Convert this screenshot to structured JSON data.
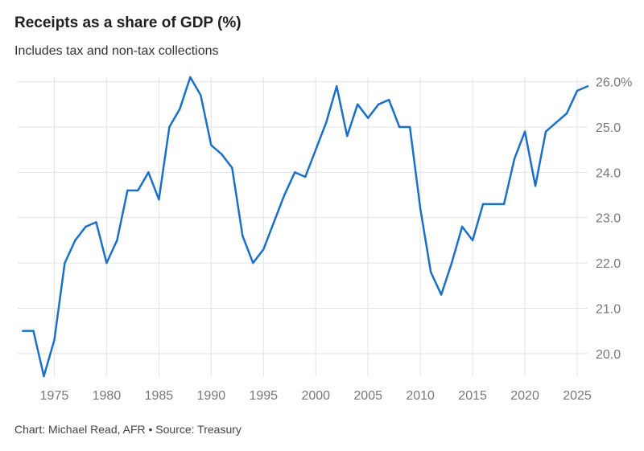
{
  "header": {
    "title": "Receipts as a share of GDP (%)",
    "subtitle": "Includes tax and non-tax collections"
  },
  "footer": {
    "credit": "Chart: Michael Read, AFR • Source: Treasury"
  },
  "colors": {
    "line": "#1a6fc9",
    "grid": "#e3e3e3",
    "tick": "#777777"
  },
  "chart_data": {
    "type": "line",
    "title": "Receipts as a share of GDP (%)",
    "subtitle": "Includes tax and non-tax collections",
    "xlabel": "",
    "ylabel": "",
    "xlim": [
      1971.5,
      2026
    ],
    "ylim": [
      19.5,
      26.1
    ],
    "x_ticks": [
      1975,
      1980,
      1985,
      1990,
      1995,
      2000,
      2005,
      2010,
      2015,
      2020,
      2025
    ],
    "x_tick_labels": [
      "1975",
      "1980",
      "1985",
      "1990",
      "1995",
      "2000",
      "2005",
      "2010",
      "2015",
      "2020",
      "2025"
    ],
    "y_ticks": [
      20,
      21,
      22,
      23,
      24,
      25,
      26
    ],
    "y_tick_labels": [
      "20.0",
      "21.0",
      "22.0",
      "23.0",
      "24.0",
      "25.0",
      "26.0%"
    ],
    "series": [
      {
        "name": "Receipts as a share of GDP",
        "x": [
          1972,
          1973,
          1974,
          1975,
          1976,
          1977,
          1978,
          1979,
          1980,
          1981,
          1982,
          1983,
          1984,
          1985,
          1986,
          1987,
          1988,
          1989,
          1990,
          1991,
          1992,
          1993,
          1994,
          1995,
          1996,
          1997,
          1998,
          1999,
          2000,
          2001,
          2002,
          2003,
          2004,
          2005,
          2006,
          2007,
          2008,
          2009,
          2010,
          2011,
          2012,
          2013,
          2014,
          2015,
          2016,
          2017,
          2018,
          2019,
          2020,
          2021,
          2022,
          2023,
          2024,
          2025,
          2026
        ],
        "values": [
          20.5,
          20.5,
          19.5,
          20.3,
          22.0,
          22.5,
          22.8,
          22.9,
          22.0,
          22.5,
          23.6,
          23.6,
          24.0,
          23.4,
          25.0,
          25.4,
          26.1,
          25.7,
          24.6,
          24.4,
          24.1,
          22.6,
          22.0,
          22.3,
          22.9,
          23.5,
          24.0,
          23.9,
          24.5,
          25.1,
          25.9,
          24.8,
          25.5,
          25.2,
          25.5,
          25.6,
          25.0,
          25.0,
          23.2,
          21.8,
          21.3,
          22.0,
          22.8,
          22.5,
          23.3,
          23.3,
          23.3,
          24.3,
          24.9,
          23.7,
          24.9,
          25.1,
          25.3,
          25.8,
          25.9
        ]
      }
    ]
  }
}
